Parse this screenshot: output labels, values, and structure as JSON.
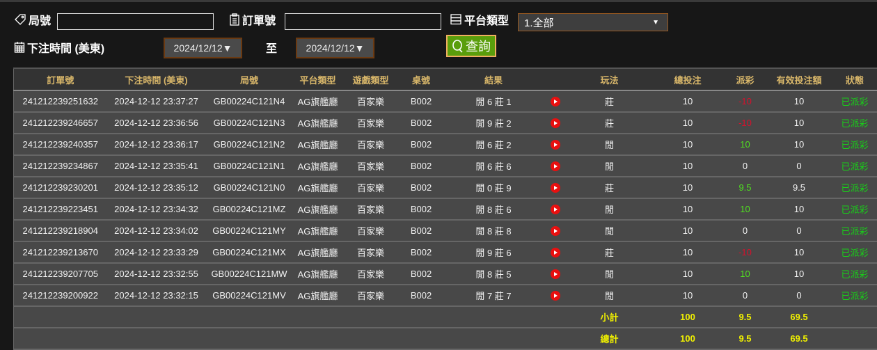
{
  "filters": {
    "round_label": "局號",
    "round_value": "",
    "order_label": "訂單號",
    "order_value": "",
    "platform_label": "平台類型",
    "platform_value": "1.全部",
    "time_label": "下注時間 (美東)",
    "date_from": "2024/12/12▼",
    "to_label": "至",
    "date_to": "2024/12/12▼",
    "search_label": "查詢"
  },
  "table": {
    "headers": [
      "訂單號",
      "下注時間 (美東)",
      "局號",
      "平台類型",
      "遊戲類型",
      "桌號",
      "結果",
      "",
      "玩法",
      "總投注",
      "派彩",
      "有效投注額",
      "狀態"
    ],
    "rows": [
      [
        "241212239251632",
        "2024-12-12 23:37:27",
        "GB00224C121N4",
        "AG旗艦廳",
        "百家樂",
        "B002",
        "閒 6 莊 1",
        "莊",
        "10",
        "-10",
        "10",
        "已派彩"
      ],
      [
        "241212239246657",
        "2024-12-12 23:36:56",
        "GB00224C121N3",
        "AG旗艦廳",
        "百家樂",
        "B002",
        "閒 9 莊 2",
        "莊",
        "10",
        "-10",
        "10",
        "已派彩"
      ],
      [
        "241212239240357",
        "2024-12-12 23:36:17",
        "GB00224C121N2",
        "AG旗艦廳",
        "百家樂",
        "B002",
        "閒 6 莊 2",
        "閒",
        "10",
        "10",
        "10",
        "已派彩"
      ],
      [
        "241212239234867",
        "2024-12-12 23:35:41",
        "GB00224C121N1",
        "AG旗艦廳",
        "百家樂",
        "B002",
        "閒 6 莊 6",
        "閒",
        "10",
        "0",
        "0",
        "已派彩"
      ],
      [
        "241212239230201",
        "2024-12-12 23:35:12",
        "GB00224C121N0",
        "AG旗艦廳",
        "百家樂",
        "B002",
        "閒 0 莊 9",
        "莊",
        "10",
        "9.5",
        "9.5",
        "已派彩"
      ],
      [
        "241212239223451",
        "2024-12-12 23:34:32",
        "GB00224C121MZ",
        "AG旗艦廳",
        "百家樂",
        "B002",
        "閒 8 莊 6",
        "閒",
        "10",
        "10",
        "10",
        "已派彩"
      ],
      [
        "241212239218904",
        "2024-12-12 23:34:02",
        "GB00224C121MY",
        "AG旗艦廳",
        "百家樂",
        "B002",
        "閒 8 莊 8",
        "閒",
        "10",
        "0",
        "0",
        "已派彩"
      ],
      [
        "241212239213670",
        "2024-12-12 23:33:29",
        "GB00224C121MX",
        "AG旗艦廳",
        "百家樂",
        "B002",
        "閒 9 莊 6",
        "莊",
        "10",
        "-10",
        "10",
        "已派彩"
      ],
      [
        "241212239207705",
        "2024-12-12 23:32:55",
        "GB00224C121MW",
        "AG旗艦廳",
        "百家樂",
        "B002",
        "閒 8 莊 5",
        "閒",
        "10",
        "10",
        "10",
        "已派彩"
      ],
      [
        "241212239200922",
        "2024-12-12 23:32:15",
        "GB00224C121MV",
        "AG旗艦廳",
        "百家樂",
        "B002",
        "閒 7 莊 7",
        "閒",
        "10",
        "0",
        "0",
        "已派彩"
      ]
    ],
    "subtotal": {
      "label": "小計",
      "total_bet": "100",
      "payout": "9.5",
      "valid_bet": "69.5"
    },
    "grand_total": {
      "label": "總計",
      "total_bet": "100",
      "payout": "9.5",
      "valid_bet": "69.5"
    }
  },
  "colors": {
    "accent_button": "#5a9e0c",
    "header_text": "#d9b76a",
    "negative": "#d8102c",
    "positive": "#50e020",
    "status": "#18d018",
    "total_text": "#f0f000"
  },
  "icons": {
    "round": "tag-icon",
    "order": "clipboard-icon",
    "platform": "server-icon",
    "time": "calendar-icon",
    "search": "search-icon",
    "replay": "play-icon"
  }
}
